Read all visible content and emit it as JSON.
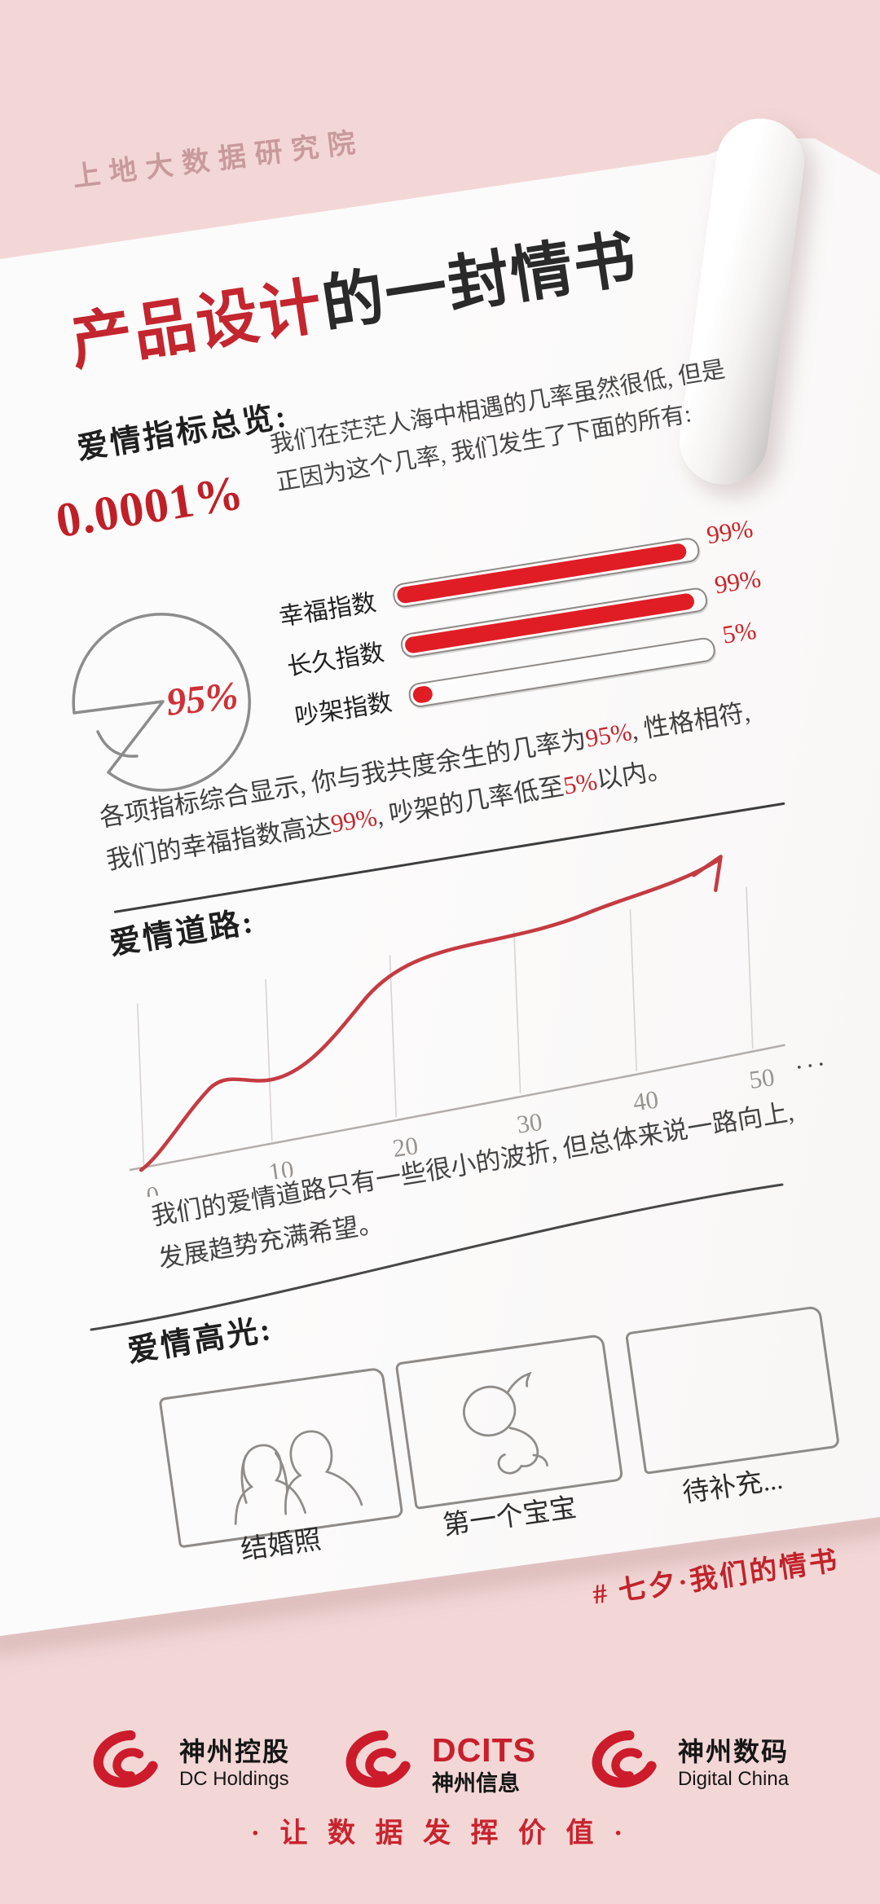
{
  "brand": {
    "org": "上地大数据研究院"
  },
  "title": {
    "red": "产品设计",
    "black": "的一封情书"
  },
  "overview": {
    "heading": "爱情指标总览:",
    "meet_probability": "0.0001%",
    "intro_lines": [
      "我们在茫茫人海中相遇的几率虽然很低, 但是",
      "正因为这个几率, 我们发生了下面的所有:"
    ],
    "bars": [
      {
        "label": "幸福指数",
        "value": "99%",
        "pct": 99
      },
      {
        "label": "长久指数",
        "value": "99%",
        "pct": 99
      },
      {
        "label": "吵架指数",
        "value": "5%",
        "pct": 5
      }
    ],
    "pie": {
      "label": "95%"
    },
    "summary_segments": [
      [
        {
          "t": "各项指标综合显示, 你与我共度余生的几率为"
        },
        {
          "t": "95%",
          "red": true
        },
        {
          "t": ", 性格相符,"
        }
      ],
      [
        {
          "t": "我们的幸福指数高达"
        },
        {
          "t": "99%",
          "red": true
        },
        {
          "t": ", 吵架的几率低至"
        },
        {
          "t": "5%",
          "red": true
        },
        {
          "t": "以内。"
        }
      ]
    ]
  },
  "road": {
    "heading": "爱情道路:",
    "ticks": [
      "0",
      "10",
      "20",
      "30",
      "40",
      "50"
    ],
    "ellipsis": "···",
    "desc_lines": [
      "我们的爱情道路只有一些很小的波折, 但总体来说一路向上,",
      "发展趋势充满希望。"
    ]
  },
  "highlights": {
    "heading": "爱情高光:",
    "items": [
      {
        "caption": "结婚照",
        "icon": "couple-sketch-icon"
      },
      {
        "caption": "第一个宝宝",
        "icon": "baby-sketch-icon"
      },
      {
        "caption": "待补充...",
        "icon": "empty-frame"
      }
    ]
  },
  "hashtag": "# 七夕·我们的情书",
  "footer": {
    "logos": [
      {
        "line1": "神州控股",
        "line2": "DC Holdings"
      },
      {
        "line1": "DCITS",
        "line2": "神州信息"
      },
      {
        "line1": "神州数码",
        "line2": "Digital China"
      }
    ],
    "slogan": "· 让 数 据 发 挥 价 值 ·"
  },
  "colors": {
    "background_pink": "#f3d7d6",
    "accent_red": "#c3262e",
    "bar_red": "#e01d25",
    "ink": "#2a2a2a",
    "sketch_gray": "#8f8c8a"
  },
  "chart_data": [
    {
      "type": "bar",
      "title": "爱情指标总览",
      "orientation": "horizontal",
      "categories": [
        "幸福指数",
        "长久指数",
        "吵架指数"
      ],
      "values": [
        99,
        99,
        5
      ],
      "unit": "%",
      "annotation": "相遇几率 0.0001%",
      "style": "hand-drawn outlined tracks with red fill, value labels in red at right"
    },
    {
      "type": "pie",
      "title": "共度余生的几率",
      "labels": [
        "95%"
      ],
      "values": [
        95
      ],
      "unit": "%",
      "style": "hand-drawn circle with cut wedge at lower-left, red 95% label inside"
    },
    {
      "type": "line",
      "title": "爱情道路",
      "x": [
        0,
        10,
        20,
        30,
        40,
        50
      ],
      "x_suffix": "···",
      "y_relative": [
        2,
        30,
        45,
        70,
        76,
        100
      ],
      "ylim": [
        0,
        100
      ],
      "grid": "vertical gridlines at each tick",
      "legend": "none",
      "style": "red ascending hand-drawn curve with small dips and arrow at end"
    }
  ]
}
